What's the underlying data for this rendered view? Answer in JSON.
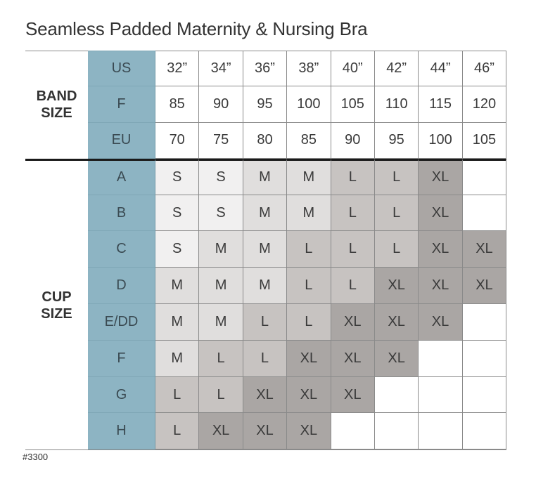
{
  "title": "Seamless Padded Maternity & Nursing Bra",
  "band_size_label": [
    "BAND",
    "SIZE"
  ],
  "cup_size_label": [
    "CUP",
    "SIZE"
  ],
  "band_rows": [
    {
      "label": "US",
      "values": [
        "32”",
        "34”",
        "36”",
        "38”",
        "40”",
        "42”",
        "44”",
        "46”"
      ]
    },
    {
      "label": "F",
      "values": [
        "85",
        "90",
        "95",
        "100",
        "105",
        "110",
        "115",
        "120"
      ]
    },
    {
      "label": "EU",
      "values": [
        "70",
        "75",
        "80",
        "85",
        "90",
        "95",
        "100",
        "105"
      ]
    }
  ],
  "cup_rows": [
    {
      "label": "A",
      "values": [
        "S",
        "S",
        "M",
        "M",
        "L",
        "L",
        "XL",
        ""
      ]
    },
    {
      "label": "B",
      "values": [
        "S",
        "S",
        "M",
        "M",
        "L",
        "L",
        "XL",
        ""
      ]
    },
    {
      "label": "C",
      "values": [
        "S",
        "M",
        "M",
        "L",
        "L",
        "L",
        "XL",
        "XL"
      ]
    },
    {
      "label": "D",
      "values": [
        "M",
        "M",
        "M",
        "L",
        "L",
        "XL",
        "XL",
        "XL"
      ]
    },
    {
      "label": "E/DD",
      "values": [
        "M",
        "M",
        "L",
        "L",
        "XL",
        "XL",
        "XL",
        ""
      ]
    },
    {
      "label": "F",
      "values": [
        "M",
        "L",
        "L",
        "XL",
        "XL",
        "XL",
        "",
        ""
      ]
    },
    {
      "label": "G",
      "values": [
        "L",
        "L",
        "XL",
        "XL",
        "XL",
        "",
        "",
        ""
      ]
    },
    {
      "label": "H",
      "values": [
        "L",
        "XL",
        "XL",
        "XL",
        "",
        "",
        "",
        ""
      ]
    }
  ],
  "size_colors": {
    "S": "#f1f0f0",
    "M": "#e0dedd",
    "L": "#c7c3c1",
    "XL": "#aaa6a4"
  },
  "header_color": "#8db4c3",
  "footnote": "#3300"
}
